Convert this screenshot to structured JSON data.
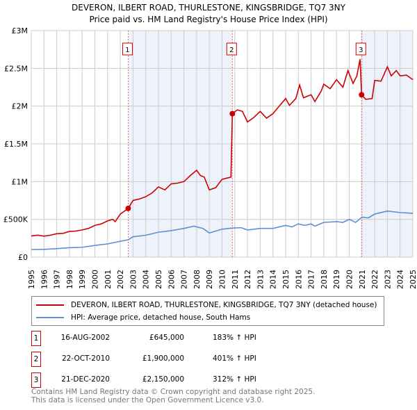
{
  "chart_data": {
    "type": "line",
    "title": "DEVERON, ILBERT ROAD, THURLESTONE, KINGSBRIDGE, TQ7 3NY",
    "subtitle": "Price paid vs. HM Land Registry's House Price Index (HPI)",
    "xlim": [
      1995,
      2025
    ],
    "ylim": [
      0,
      3000000
    ],
    "y_ticks": [
      {
        "v": 0,
        "label": "£0"
      },
      {
        "v": 500000,
        "label": "£500K"
      },
      {
        "v": 1000000,
        "label": "£1M"
      },
      {
        "v": 1500000,
        "label": "£1.5M"
      },
      {
        "v": 2000000,
        "label": "£2M"
      },
      {
        "v": 2500000,
        "label": "£2.5M"
      },
      {
        "v": 3000000,
        "label": "£3M"
      }
    ],
    "x_ticks": [
      "1995",
      "1996",
      "1997",
      "1998",
      "1999",
      "2000",
      "2001",
      "2002",
      "2003",
      "2004",
      "2005",
      "2006",
      "2007",
      "2008",
      "2009",
      "2010",
      "2011",
      "2012",
      "2013",
      "2014",
      "2015",
      "2016",
      "2017",
      "2018",
      "2019",
      "2020",
      "2021",
      "2022",
      "2023",
      "2024",
      "2025"
    ],
    "grid": true,
    "shaded_ranges": [
      [
        2002.62,
        2010.81
      ],
      [
        2020.97,
        2025
      ]
    ],
    "series": [
      {
        "name": "DEVERON, ILBERT ROAD, THURLESTONE, KINGSBRIDGE, TQ7 3NY (detached house)",
        "color": "#cc0000",
        "points": [
          [
            1995,
            280000
          ],
          [
            1995.5,
            290000
          ],
          [
            1996,
            278000
          ],
          [
            1996.5,
            290000
          ],
          [
            1997,
            310000
          ],
          [
            1997.5,
            315000
          ],
          [
            1998,
            340000
          ],
          [
            1998.5,
            345000
          ],
          [
            1999,
            360000
          ],
          [
            1999.5,
            380000
          ],
          [
            2000,
            420000
          ],
          [
            2000.5,
            440000
          ],
          [
            2001,
            480000
          ],
          [
            2001.4,
            500000
          ],
          [
            2001.6,
            470000
          ],
          [
            2002,
            570000
          ],
          [
            2002.62,
            645000
          ],
          [
            2003,
            750000
          ],
          [
            2003.5,
            770000
          ],
          [
            2004,
            800000
          ],
          [
            2004.5,
            850000
          ],
          [
            2005,
            930000
          ],
          [
            2005.5,
            890000
          ],
          [
            2006,
            970000
          ],
          [
            2006.5,
            980000
          ],
          [
            2007,
            1000000
          ],
          [
            2007.5,
            1080000
          ],
          [
            2008,
            1150000
          ],
          [
            2008.3,
            1080000
          ],
          [
            2008.6,
            1060000
          ],
          [
            2009,
            890000
          ],
          [
            2009.5,
            920000
          ],
          [
            2010,
            1030000
          ],
          [
            2010.7,
            1060000
          ],
          [
            2010.81,
            1900000
          ],
          [
            2011.2,
            1950000
          ],
          [
            2011.6,
            1930000
          ],
          [
            2012,
            1790000
          ],
          [
            2012.5,
            1850000
          ],
          [
            2013,
            1930000
          ],
          [
            2013.5,
            1840000
          ],
          [
            2014,
            1900000
          ],
          [
            2014.5,
            2000000
          ],
          [
            2015,
            2100000
          ],
          [
            2015.3,
            2010000
          ],
          [
            2015.8,
            2100000
          ],
          [
            2016.1,
            2280000
          ],
          [
            2016.4,
            2110000
          ],
          [
            2017,
            2150000
          ],
          [
            2017.3,
            2060000
          ],
          [
            2017.8,
            2200000
          ],
          [
            2018,
            2290000
          ],
          [
            2018.5,
            2230000
          ],
          [
            2019,
            2350000
          ],
          [
            2019.5,
            2250000
          ],
          [
            2019.9,
            2470000
          ],
          [
            2020.3,
            2300000
          ],
          [
            2020.6,
            2400000
          ],
          [
            2020.85,
            2620000
          ],
          [
            2020.97,
            2150000
          ],
          [
            2021.3,
            2090000
          ],
          [
            2021.8,
            2100000
          ],
          [
            2022,
            2340000
          ],
          [
            2022.5,
            2330000
          ],
          [
            2023,
            2520000
          ],
          [
            2023.3,
            2400000
          ],
          [
            2023.7,
            2470000
          ],
          [
            2024,
            2400000
          ],
          [
            2024.5,
            2410000
          ],
          [
            2025,
            2350000
          ]
        ]
      },
      {
        "name": "HPI: Average price, detached house, South Hams",
        "color": "#5b8fd6",
        "points": [
          [
            1995,
            100000
          ],
          [
            1996,
            103000
          ],
          [
            1997,
            112000
          ],
          [
            1998,
            125000
          ],
          [
            1999,
            130000
          ],
          [
            2000,
            155000
          ],
          [
            2001,
            175000
          ],
          [
            2002,
            210000
          ],
          [
            2002.62,
            230000
          ],
          [
            2003,
            270000
          ],
          [
            2004,
            290000
          ],
          [
            2005,
            330000
          ],
          [
            2006,
            350000
          ],
          [
            2007,
            380000
          ],
          [
            2007.8,
            410000
          ],
          [
            2008.5,
            380000
          ],
          [
            2009,
            320000
          ],
          [
            2010,
            370000
          ],
          [
            2010.8,
            385000
          ],
          [
            2011.5,
            390000
          ],
          [
            2012,
            360000
          ],
          [
            2013,
            380000
          ],
          [
            2014,
            380000
          ],
          [
            2015,
            420000
          ],
          [
            2015.5,
            400000
          ],
          [
            2016,
            440000
          ],
          [
            2016.5,
            420000
          ],
          [
            2017,
            440000
          ],
          [
            2017.3,
            410000
          ],
          [
            2018,
            460000
          ],
          [
            2019,
            470000
          ],
          [
            2019.5,
            460000
          ],
          [
            2020,
            500000
          ],
          [
            2020.5,
            460000
          ],
          [
            2021,
            530000
          ],
          [
            2021.5,
            520000
          ],
          [
            2022,
            570000
          ],
          [
            2023,
            610000
          ],
          [
            2024,
            590000
          ],
          [
            2025,
            580000
          ]
        ]
      }
    ],
    "sales": [
      {
        "n": "1",
        "x": 2002.62,
        "y": 645000,
        "date": "16-AUG-2002",
        "price": "£645,000",
        "hpi": "183% ↑ HPI"
      },
      {
        "n": "2",
        "x": 2010.81,
        "y": 1900000,
        "date": "22-OCT-2010",
        "price": "£1,900,000",
        "hpi": "401% ↑ HPI"
      },
      {
        "n": "3",
        "x": 2020.97,
        "y": 2150000,
        "date": "21-DEC-2020",
        "price": "£2,150,000",
        "hpi": "312% ↑ HPI"
      }
    ],
    "legend": "below"
  },
  "footer": {
    "line1": "Contains HM Land Registry data © Crown copyright and database right 2025.",
    "line2": "This data is licensed under the Open Government Licence v3.0."
  }
}
